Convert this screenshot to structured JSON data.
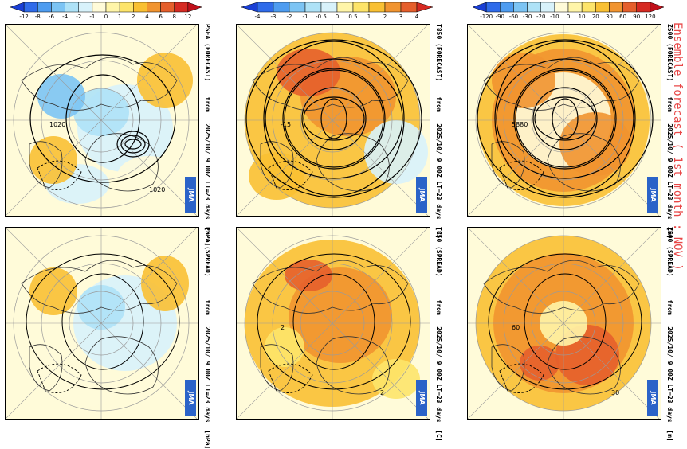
{
  "ensemble_title": "Ensemble forecast ( 1st month : NOV )",
  "logo_text": "JMA",
  "columns": [
    {
      "id": "psea",
      "colorbar": {
        "ticks": [
          "-12",
          "-8",
          "-6",
          "-4",
          "-2",
          "-1",
          "0",
          "1",
          "2",
          "4",
          "6",
          "8",
          "12"
        ],
        "colors": [
          "#1a3fd6",
          "#2f6bea",
          "#4e9cf0",
          "#7cc4f4",
          "#aee2f7",
          "#d8f2fb",
          "#fffbd9",
          "#fff5a8",
          "#fde46a",
          "#f9c033",
          "#f19430",
          "#e55f2c",
          "#d62a22",
          "#c0101a"
        ]
      },
      "forecast": {
        "title": "PSEA (FORECAST)    from   2025/10/ 9 00Z LT=23 days  [hPa]",
        "label_a": "1020",
        "label_b": "1020"
      },
      "spread": {
        "title": "PSEA (SPREAD)      from   2025/10/ 9 00Z LT=23 days  [hPa]"
      }
    },
    {
      "id": "t850",
      "colorbar": {
        "ticks": [
          "-4",
          "-3",
          "-2",
          "-1",
          "-0.5",
          "0",
          "0.5",
          "1",
          "2",
          "3",
          "4"
        ],
        "colors": [
          "#1a3fd6",
          "#2f6bea",
          "#4e9cf0",
          "#7cc4f4",
          "#aee2f7",
          "#d8f2fb",
          "#fff5a8",
          "#fde46a",
          "#f9c033",
          "#f19430",
          "#e55f2c",
          "#d62a22"
        ]
      },
      "forecast": {
        "title": "T850 (FORECAST)    from   2025/10/ 9 00Z LT=23 days  [C]",
        "label_a": "-15",
        "label_b": ""
      },
      "spread": {
        "title": "T850 (SPREAD)      from   2025/10/ 9 00Z LT=23 days  [C]",
        "label_a": "2",
        "label_b": "2"
      }
    },
    {
      "id": "z500",
      "colorbar": {
        "ticks": [
          "-120",
          "-90",
          "-60",
          "-30",
          "-20",
          "-10",
          "0",
          "10",
          "20",
          "30",
          "60",
          "90",
          "120"
        ],
        "colors": [
          "#1a3fd6",
          "#2f6bea",
          "#4e9cf0",
          "#7cc4f4",
          "#aee2f7",
          "#d8f2fb",
          "#fffbd9",
          "#fff5a8",
          "#fde46a",
          "#f9c033",
          "#f19430",
          "#e55f2c",
          "#d62a22",
          "#c0101a"
        ]
      },
      "forecast": {
        "title": "Z500 (FORECAST)    from   2025/10/ 9 00Z LT=23 days  [m]",
        "label_a": "5880",
        "label_b": ""
      },
      "spread": {
        "title": "Z500 (SPREAD)      from   2025/10/ 9 00Z LT=23 days  [m]",
        "label_a": "60",
        "label_b": "30"
      }
    }
  ]
}
